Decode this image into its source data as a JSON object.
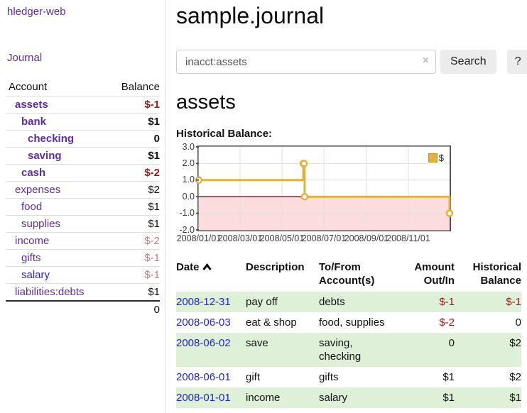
{
  "app": {
    "title": "hledger-web"
  },
  "colors": {
    "link_purple": "#5e2da2",
    "link_blue": "#2323d6",
    "negative_strong": "#9a1717",
    "negative_rose": "#c17d7e",
    "row_stripe_green": "#dff0d8",
    "chart_gold": "#e2b33c",
    "chart_negative_fill": "#fcdcdc",
    "chart_zero_line": "#8b0000"
  },
  "sidebar": {
    "journal_link": "Journal",
    "accounts_header": {
      "account": "Account",
      "balance": "Balance"
    },
    "rows": [
      {
        "account": "assets",
        "balance": "$-1",
        "depth": 1,
        "bold": true,
        "balance_class": "neg",
        "link_color": "purple"
      },
      {
        "account": "bank",
        "balance": "$1",
        "depth": 2,
        "bold": true,
        "balance_class": "pos",
        "link_color": "purple"
      },
      {
        "account": "checking",
        "balance": "0",
        "depth": 3,
        "bold": true,
        "balance_class": "pos",
        "link_color": "purple"
      },
      {
        "account": "saving",
        "balance": "$1",
        "depth": 3,
        "bold": true,
        "balance_class": "pos",
        "link_color": "purple"
      },
      {
        "account": "cash",
        "balance": "$-2",
        "depth": 2,
        "bold": true,
        "balance_class": "neg",
        "link_color": "purple"
      },
      {
        "account": "expenses",
        "balance": "$2",
        "depth": 1,
        "bold": false,
        "balance_class": "pos",
        "link_color": "purple"
      },
      {
        "account": "food",
        "balance": "$1",
        "depth": 2,
        "bold": false,
        "balance_class": "pos",
        "link_color": "purple"
      },
      {
        "account": "supplies",
        "balance": "$1",
        "depth": 2,
        "bold": false,
        "balance_class": "pos",
        "link_color": "purple"
      },
      {
        "account": "income",
        "balance": "$-2",
        "depth": 1,
        "bold": false,
        "balance_class": "rose",
        "link_color": "purple"
      },
      {
        "account": "gifts",
        "balance": "$-1",
        "depth": 2,
        "bold": false,
        "balance_class": "rose",
        "link_color": "purple"
      },
      {
        "account": "salary",
        "balance": "$-1",
        "depth": 2,
        "bold": false,
        "balance_class": "rose",
        "link_color": "blue"
      },
      {
        "account": "liabilities:debts",
        "balance": "$1",
        "depth": 1,
        "bold": false,
        "balance_class": "pos",
        "link_color": "purple"
      }
    ],
    "total": "0"
  },
  "main": {
    "title": "sample.journal",
    "search": {
      "value": "inacct:assets",
      "clear_icon": "×",
      "button": "Search",
      "help_button": "?"
    },
    "section_title": "assets",
    "chart_label": "Historical Balance:"
  },
  "chart_data": {
    "type": "line",
    "title": "Historical Balance:",
    "step": true,
    "x_range": [
      "2008-01-01",
      "2008-12-31"
    ],
    "ylim": [
      -2,
      3
    ],
    "yticks": [
      3.0,
      2.0,
      1.0,
      0.0,
      -1.0,
      -2.0
    ],
    "xticks": [
      {
        "date": "2008-01-01",
        "label": "2008/01/01"
      },
      {
        "date": "2008-03-01",
        "label": "2008/03/01"
      },
      {
        "date": "2008-05-01",
        "label": "2008/05/01"
      },
      {
        "date": "2008-07-01",
        "label": "2008/07/01"
      },
      {
        "date": "2008-09-01",
        "label": "2008/09/01"
      },
      {
        "date": "2008-11-01",
        "label": "2008/11/01"
      }
    ],
    "series": [
      {
        "name": "$",
        "color": "#e2b33c",
        "points": [
          [
            "2008-01-01",
            1
          ],
          [
            "2008-06-01",
            2
          ],
          [
            "2008-06-02",
            2
          ],
          [
            "2008-06-03",
            0
          ],
          [
            "2008-12-31",
            -1
          ]
        ]
      }
    ],
    "legend_position": "top-right",
    "grid": true
  },
  "register": {
    "headers": [
      {
        "lines": [
          "Date"
        ],
        "align": "left",
        "sortable": true,
        "sorted": "asc"
      },
      {
        "lines": [
          "Description"
        ],
        "align": "left",
        "sortable": false
      },
      {
        "lines": [
          "To/From",
          "Account(s)"
        ],
        "align": "left",
        "sortable": false
      },
      {
        "lines": [
          "Amount",
          "Out/In"
        ],
        "align": "right",
        "sortable": false
      },
      {
        "lines": [
          "Historical",
          "Balance"
        ],
        "align": "right",
        "sortable": false
      }
    ],
    "rows": [
      {
        "date": "2008-12-31",
        "description": "pay off",
        "accounts": "debts",
        "amount": "$-1",
        "amount_negative": true,
        "balance": "$-1",
        "balance_negative": true
      },
      {
        "date": "2008-06-03",
        "description": "eat & shop",
        "accounts": "food, supplies",
        "amount": "$-2",
        "amount_negative": true,
        "balance": "0",
        "balance_negative": false
      },
      {
        "date": "2008-06-02",
        "description": "save",
        "accounts": "saving, checking",
        "amount": "0",
        "amount_negative": false,
        "balance": "$2",
        "balance_negative": false
      },
      {
        "date": "2008-06-01",
        "description": "gift",
        "accounts": "gifts",
        "amount": "$1",
        "amount_negative": false,
        "balance": "$2",
        "balance_negative": false
      },
      {
        "date": "2008-01-01",
        "description": "income",
        "accounts": "salary",
        "amount": "$1",
        "amount_negative": false,
        "balance": "$1",
        "balance_negative": false
      }
    ]
  }
}
